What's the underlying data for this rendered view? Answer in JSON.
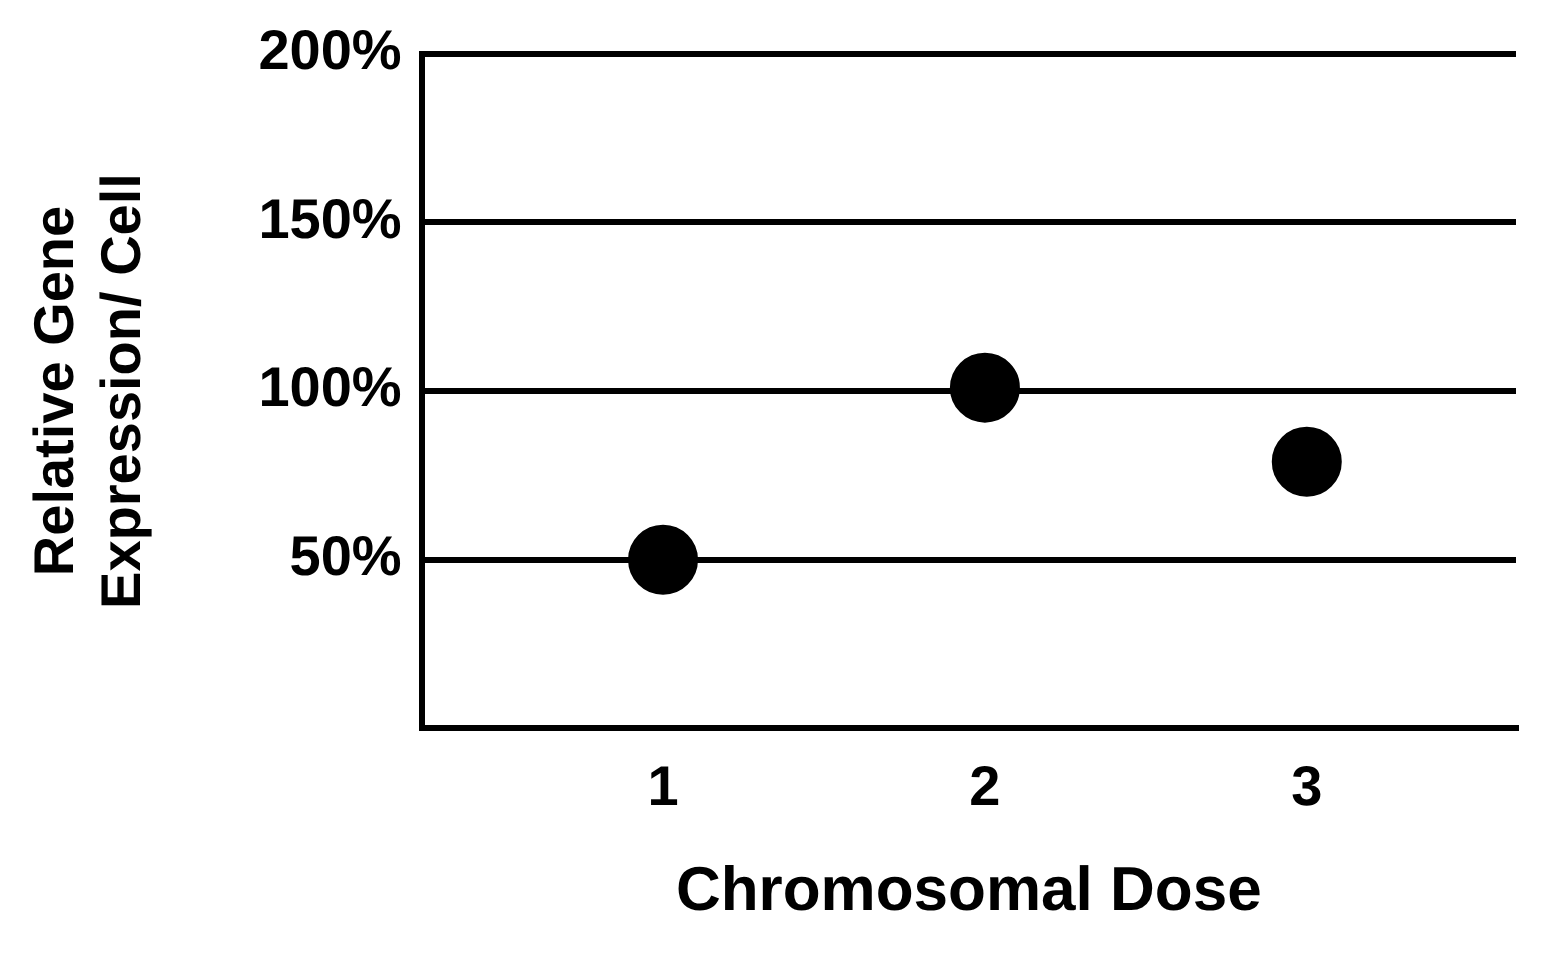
{
  "chart_data": {
    "type": "scatter",
    "xlabel": "Chromosomal Dose",
    "ylabel": "Relative Gene\nExpression/ Cell",
    "x": [
      1,
      2,
      3
    ],
    "series": [
      {
        "color": "#000000",
        "values": [
          50,
          101,
          79
        ]
      }
    ],
    "xlim": [
      0.25,
      3.65
    ],
    "xticks": [
      1,
      2,
      3
    ],
    "ylim": [
      0,
      200
    ],
    "yticks": [
      {
        "value": 50,
        "label": "50%"
      },
      {
        "value": 100,
        "label": "100%"
      },
      {
        "value": 150,
        "label": "150%"
      },
      {
        "value": 200,
        "label": "200%"
      }
    ],
    "grid": "y",
    "legend": false,
    "marker": "circle"
  }
}
